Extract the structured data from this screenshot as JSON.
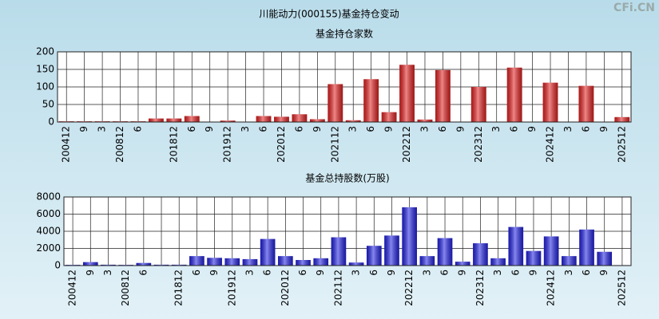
{
  "title": "川能动力(000155)基金持仓变动",
  "watermark": "CFi.CN",
  "chart_data": [
    {
      "type": "bar",
      "title": "基金持仓家数",
      "color": "#e52323",
      "grid": true,
      "categories": [
        "200412",
        "9",
        "3",
        "200812",
        "6",
        null,
        "201812",
        "6",
        "9",
        "201912",
        "3",
        "6",
        "202012",
        "6",
        "9",
        "202112",
        "3",
        "6",
        "9",
        "202212",
        "3",
        "6",
        "9",
        "202312",
        "3",
        "6",
        "9",
        "202412",
        "3",
        "6",
        "9",
        "202512"
      ],
      "values": [
        2,
        2,
        2,
        2,
        2,
        10,
        10,
        17,
        1,
        4,
        1,
        17,
        15,
        22,
        8,
        108,
        5,
        122,
        28,
        163,
        7,
        148,
        1,
        100,
        1,
        155,
        1,
        112,
        1,
        103,
        1,
        14
      ],
      "ylim": [
        0,
        200
      ],
      "yticks": [
        0,
        50,
        100,
        150,
        200
      ]
    },
    {
      "type": "bar",
      "title": "基金总持股数(万股)",
      "color": "#2323e5",
      "grid": true,
      "categories": [
        "200412",
        "9",
        "3",
        "200812",
        "6",
        null,
        "201812",
        "6",
        "9",
        "201912",
        "3",
        "6",
        "202012",
        "6",
        "9",
        "202112",
        "3",
        "6",
        "9",
        "202212",
        "3",
        "6",
        "9",
        "202312",
        "3",
        "6",
        "9",
        "202412",
        "3",
        "6",
        "9",
        "202512"
      ],
      "values": [
        80,
        400,
        100,
        80,
        300,
        100,
        100,
        1100,
        900,
        850,
        750,
        3100,
        1100,
        650,
        850,
        3300,
        350,
        2300,
        3500,
        6800,
        1100,
        3200,
        450,
        2600,
        850,
        4500,
        1700,
        3400,
        1100,
        4200,
        1600,
        50
      ],
      "ylim": [
        0,
        8000
      ],
      "yticks": [
        0,
        2000,
        4000,
        6000,
        8000
      ]
    }
  ]
}
